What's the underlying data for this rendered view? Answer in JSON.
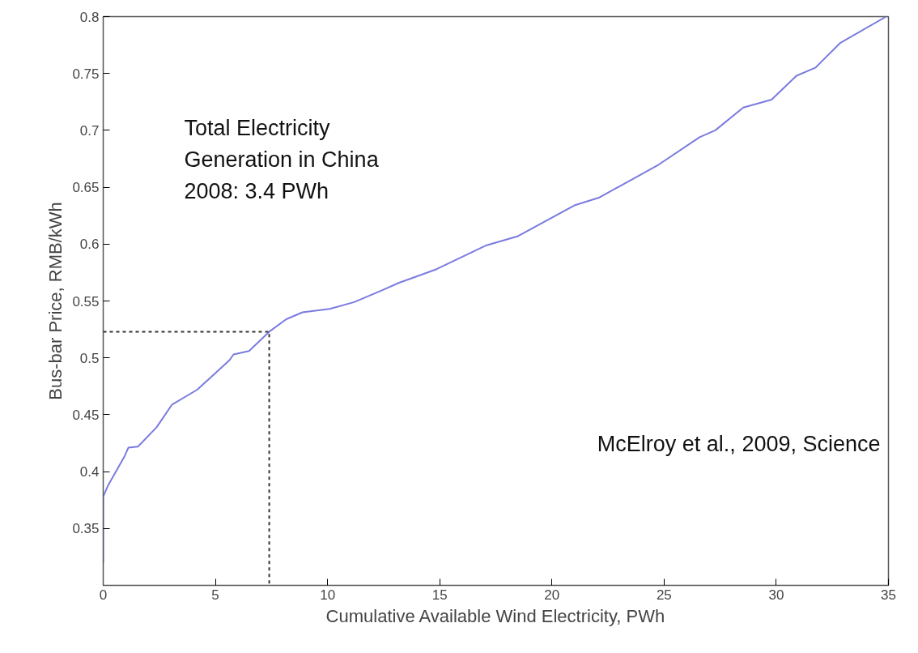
{
  "chart_data": {
    "type": "line",
    "xlabel": "Cumulative Available Wind Electricity, PWh",
    "ylabel": "Bus-bar Price, RMB/kWh",
    "xlim": [
      0,
      35
    ],
    "ylim": [
      0.3,
      0.8
    ],
    "xticks": [
      0,
      5,
      10,
      15,
      20,
      25,
      30,
      35
    ],
    "yticks": [
      0.35,
      0.4,
      0.45,
      0.5,
      0.55,
      0.6,
      0.65,
      0.7,
      0.75,
      0.8
    ],
    "grid": false,
    "series": [
      {
        "color": "#7b7be0",
        "line_style": "solid",
        "x": [
          0,
          0,
          0.22,
          0.94,
          1.12,
          1.55,
          2.38,
          3.07,
          4.19,
          5.63,
          5.81,
          6.5,
          7.4,
          8.16,
          8.88,
          10.1,
          11.19,
          12.38,
          13.19,
          14.86,
          17.09,
          18.49,
          21.0,
          22.12,
          24.77,
          26.58,
          27.28,
          28.53,
          29.79,
          30.9,
          31.74,
          32.86,
          34.9
        ],
        "values": [
          0.32,
          0.378,
          0.388,
          0.413,
          0.421,
          0.422,
          0.439,
          0.459,
          0.472,
          0.498,
          0.503,
          0.506,
          0.523,
          0.534,
          0.54,
          0.543,
          0.549,
          0.559,
          0.566,
          0.578,
          0.599,
          0.607,
          0.634,
          0.641,
          0.67,
          0.694,
          0.7,
          0.72,
          0.727,
          0.748,
          0.755,
          0.777,
          0.8
        ]
      },
      {
        "color": "#333333",
        "line_style": "dashed",
        "x": [
          0,
          7.4,
          7.4
        ],
        "values": [
          0.523,
          0.523,
          0.3
        ]
      }
    ],
    "annotations": [
      "Total Electricity\nGeneration in China\n2008: 3.4 PWh",
      "McElroy et al., 2009, Science"
    ]
  }
}
